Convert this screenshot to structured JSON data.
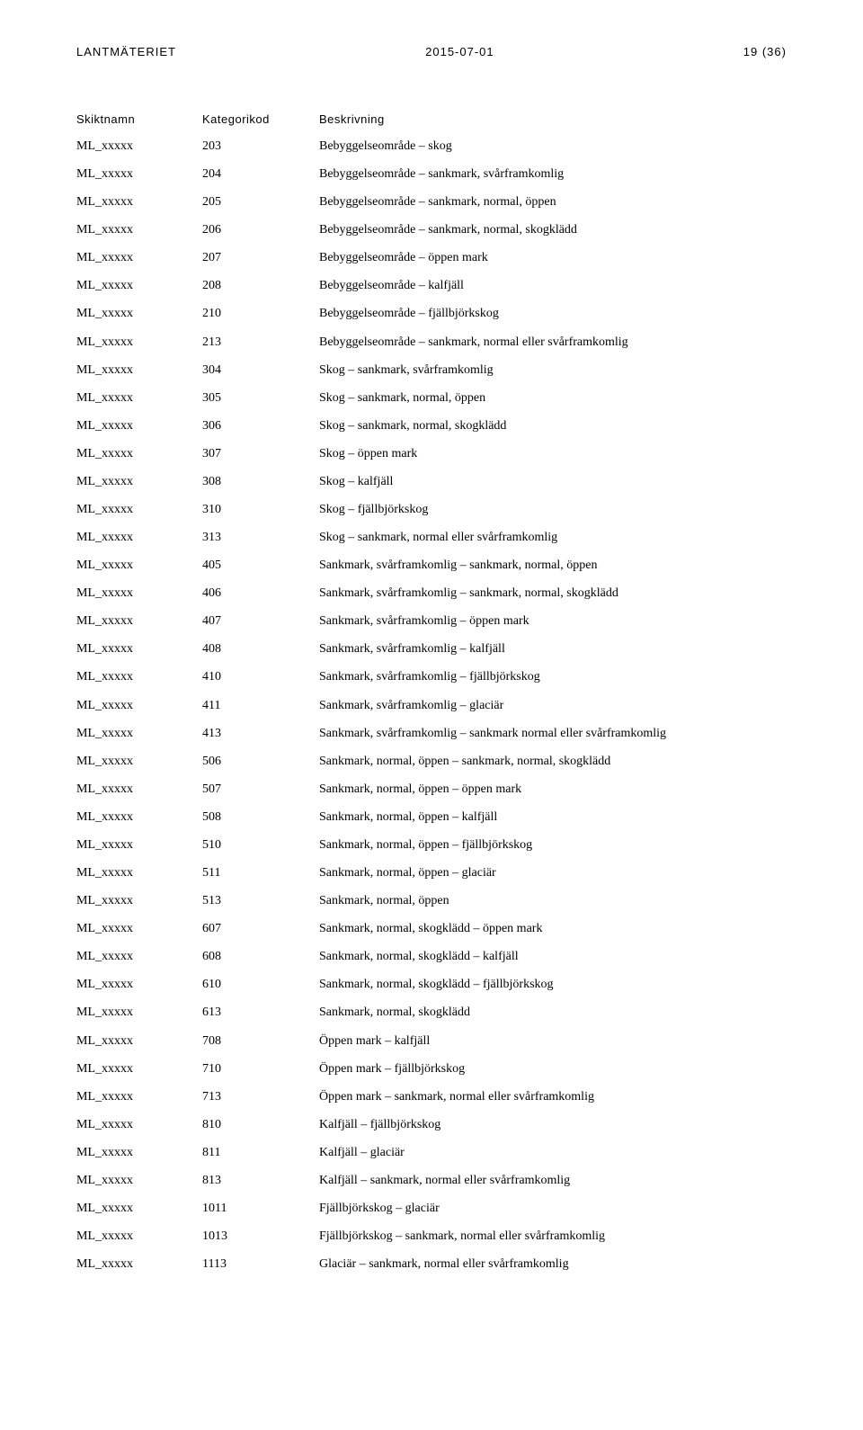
{
  "header": {
    "left": "LANTMÄTERIET",
    "center": "2015-07-01",
    "right": "19 (36)"
  },
  "columns": {
    "c1": "Skiktnamn",
    "c2": "Kategorikod",
    "c3": "Beskrivning"
  },
  "rows": [
    {
      "c1": "ML_xxxxx",
      "c2": "203",
      "c3": "Bebyggelseområde – skog"
    },
    {
      "c1": "ML_xxxxx",
      "c2": "204",
      "c3": "Bebyggelseområde – sankmark, svårframkomlig"
    },
    {
      "c1": "ML_xxxxx",
      "c2": "205",
      "c3": "Bebyggelseområde – sankmark, normal, öppen"
    },
    {
      "c1": "ML_xxxxx",
      "c2": "206",
      "c3": "Bebyggelseområde – sankmark, normal, skogklädd"
    },
    {
      "c1": "ML_xxxxx",
      "c2": "207",
      "c3": "Bebyggelseområde – öppen mark"
    },
    {
      "c1": "ML_xxxxx",
      "c2": "208",
      "c3": "Bebyggelseområde – kalfjäll"
    },
    {
      "c1": "ML_xxxxx",
      "c2": "210",
      "c3": "Bebyggelseområde – fjällbjörkskog"
    },
    {
      "c1": "ML_xxxxx",
      "c2": "213",
      "c3": "Bebyggelseområde – sankmark, normal eller svårframkomlig"
    },
    {
      "c1": "ML_xxxxx",
      "c2": "304",
      "c3": "Skog – sankmark, svårframkomlig"
    },
    {
      "c1": "ML_xxxxx",
      "c2": "305",
      "c3": "Skog – sankmark, normal, öppen"
    },
    {
      "c1": "ML_xxxxx",
      "c2": "306",
      "c3": "Skog – sankmark, normal, skogklädd"
    },
    {
      "c1": "ML_xxxxx",
      "c2": "307",
      "c3": "Skog – öppen mark"
    },
    {
      "c1": "ML_xxxxx",
      "c2": "308",
      "c3": "Skog – kalfjäll"
    },
    {
      "c1": "ML_xxxxx",
      "c2": "310",
      "c3": "Skog – fjällbjörkskog"
    },
    {
      "c1": "ML_xxxxx",
      "c2": "313",
      "c3": "Skog – sankmark, normal eller svårframkomlig"
    },
    {
      "c1": "ML_xxxxx",
      "c2": "405",
      "c3": "Sankmark, svårframkomlig – sankmark, normal, öppen"
    },
    {
      "c1": "ML_xxxxx",
      "c2": "406",
      "c3": "Sankmark, svårframkomlig – sankmark, normal, skogklädd"
    },
    {
      "c1": "ML_xxxxx",
      "c2": "407",
      "c3": "Sankmark, svårframkomlig – öppen mark"
    },
    {
      "c1": "ML_xxxxx",
      "c2": "408",
      "c3": "Sankmark, svårframkomlig – kalfjäll"
    },
    {
      "c1": "ML_xxxxx",
      "c2": "410",
      "c3": "Sankmark, svårframkomlig – fjällbjörkskog"
    },
    {
      "c1": "ML_xxxxx",
      "c2": "411",
      "c3": "Sankmark, svårframkomlig – glaciär"
    },
    {
      "c1": "ML_xxxxx",
      "c2": "413",
      "c3": "Sankmark, svårframkomlig – sankmark normal eller svårframkomlig"
    },
    {
      "c1": "ML_xxxxx",
      "c2": "506",
      "c3": "Sankmark, normal, öppen – sankmark, normal, skogklädd"
    },
    {
      "c1": "ML_xxxxx",
      "c2": "507",
      "c3": "Sankmark, normal, öppen – öppen mark"
    },
    {
      "c1": "ML_xxxxx",
      "c2": "508",
      "c3": "Sankmark, normal, öppen – kalfjäll"
    },
    {
      "c1": "ML_xxxxx",
      "c2": "510",
      "c3": "Sankmark, normal, öppen – fjällbjörkskog"
    },
    {
      "c1": "ML_xxxxx",
      "c2": "511",
      "c3": "Sankmark, normal, öppen – glaciär"
    },
    {
      "c1": "ML_xxxxx",
      "c2": "513",
      "c3": "Sankmark, normal, öppen"
    },
    {
      "c1": "ML_xxxxx",
      "c2": "607",
      "c3": "Sankmark, normal, skogklädd – öppen mark"
    },
    {
      "c1": "ML_xxxxx",
      "c2": "608",
      "c3": "Sankmark, normal, skogklädd – kalfjäll"
    },
    {
      "c1": "ML_xxxxx",
      "c2": "610",
      "c3": "Sankmark, normal, skogklädd – fjällbjörkskog"
    },
    {
      "c1": "ML_xxxxx",
      "c2": "613",
      "c3": "Sankmark, normal, skogklädd"
    },
    {
      "c1": "ML_xxxxx",
      "c2": "708",
      "c3": "Öppen mark – kalfjäll"
    },
    {
      "c1": "ML_xxxxx",
      "c2": "710",
      "c3": "Öppen mark – fjällbjörkskog"
    },
    {
      "c1": "ML_xxxxx",
      "c2": "713",
      "c3": "Öppen mark – sankmark, normal eller svårframkomlig"
    },
    {
      "c1": "ML_xxxxx",
      "c2": "810",
      "c3": "Kalfjäll – fjällbjörkskog"
    },
    {
      "c1": "ML_xxxxx",
      "c2": "811",
      "c3": "Kalfjäll – glaciär"
    },
    {
      "c1": "ML_xxxxx",
      "c2": "813",
      "c3": "Kalfjäll – sankmark, normal eller svårframkomlig"
    },
    {
      "c1": "ML_xxxxx",
      "c2": "1011",
      "c3": "Fjällbjörkskog – glaciär"
    },
    {
      "c1": "ML_xxxxx",
      "c2": "1013",
      "c3": "Fjällbjörkskog – sankmark, normal eller svårframkomlig"
    },
    {
      "c1": "ML_xxxxx",
      "c2": "1113",
      "c3": "Glaciär – sankmark, normal eller svårframkomlig"
    }
  ]
}
